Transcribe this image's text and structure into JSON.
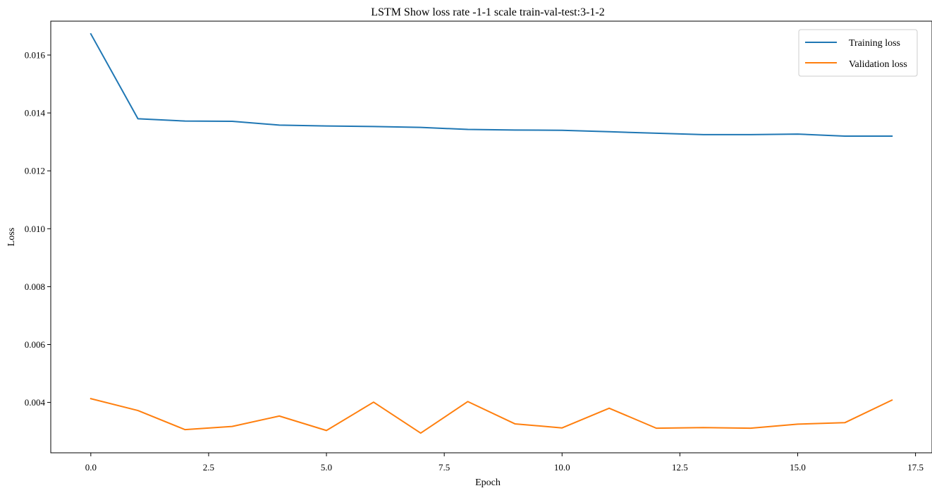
{
  "chart_data": {
    "type": "line",
    "title": "LSTM Show loss rate -1-1 scale train-val-test:3-1-2",
    "xlabel": "Epoch",
    "ylabel": "Loss",
    "xlim": [
      -0.85,
      17.85
    ],
    "ylim": [
      0.00226,
      0.01717
    ],
    "xticks": [
      0.0,
      2.5,
      5.0,
      7.5,
      10.0,
      12.5,
      15.0,
      17.5
    ],
    "xtick_labels": [
      "0.0",
      "2.5",
      "5.0",
      "7.5",
      "10.0",
      "12.5",
      "15.0",
      "17.5"
    ],
    "yticks": [
      0.004,
      0.006,
      0.008,
      0.01,
      0.012,
      0.014,
      0.016
    ],
    "ytick_labels": [
      "0.004",
      "0.006",
      "0.008",
      "0.010",
      "0.012",
      "0.014",
      "0.016"
    ],
    "grid": false,
    "legend_position": "top-right",
    "x": [
      0,
      1,
      2,
      3,
      4,
      5,
      6,
      7,
      8,
      9,
      10,
      11,
      12,
      13,
      14,
      15,
      16,
      17
    ],
    "series": [
      {
        "name": "Training loss",
        "color": "#1f77b4",
        "values": [
          0.01673,
          0.0138,
          0.01372,
          0.01371,
          0.01358,
          0.01355,
          0.01353,
          0.0135,
          0.01343,
          0.01341,
          0.0134,
          0.01335,
          0.0133,
          0.01325,
          0.01325,
          0.01327,
          0.0132,
          0.0132
        ]
      },
      {
        "name": "Validation loss",
        "color": "#ff7f0e",
        "values": [
          0.00413,
          0.00372,
          0.00306,
          0.00317,
          0.00353,
          0.00303,
          0.00401,
          0.00294,
          0.00403,
          0.00326,
          0.00312,
          0.0038,
          0.00311,
          0.00313,
          0.00311,
          0.00325,
          0.0033,
          0.00408
        ]
      }
    ]
  }
}
